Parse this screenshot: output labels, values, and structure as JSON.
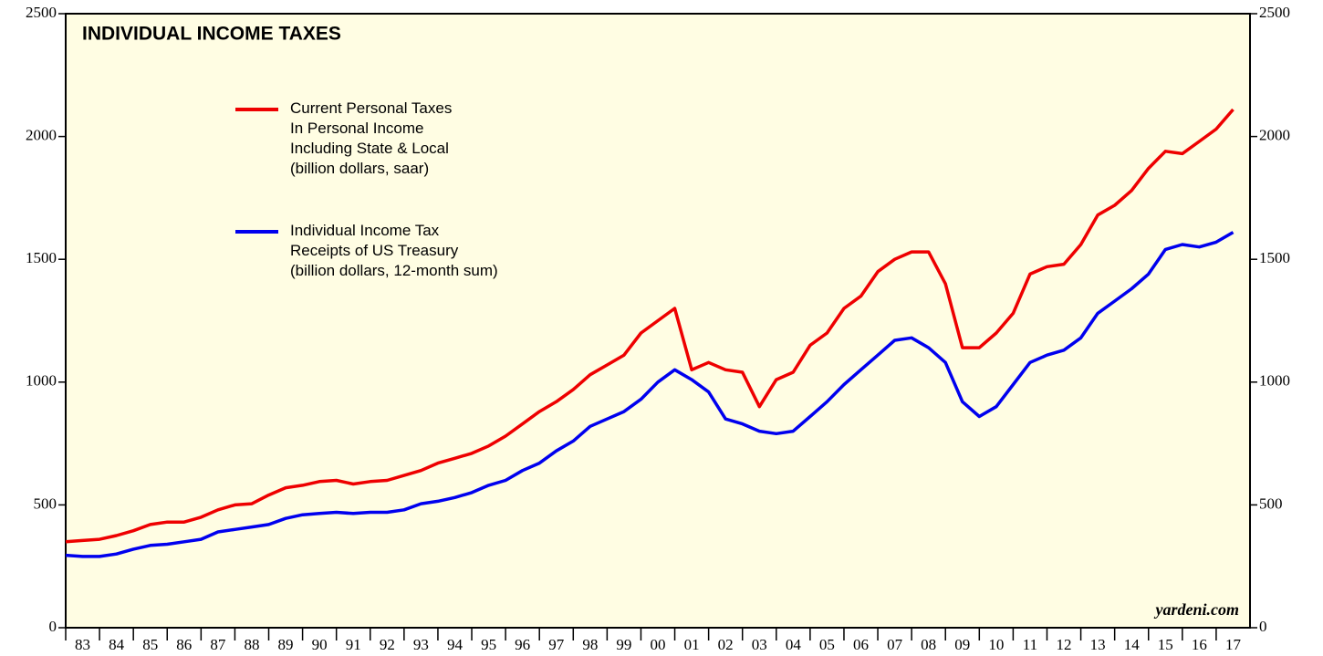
{
  "chart_data": {
    "type": "line",
    "title": "INDIVIDUAL INCOME TAXES",
    "source": "yardeni.com",
    "x": [
      1983,
      1983.5,
      1984,
      1984.5,
      1985,
      1985.5,
      1986,
      1986.5,
      1987,
      1987.5,
      1988,
      1988.5,
      1989,
      1989.5,
      1990,
      1990.5,
      1991,
      1991.5,
      1992,
      1992.5,
      1993,
      1993.5,
      1994,
      1994.5,
      1995,
      1995.5,
      1996,
      1996.5,
      1997,
      1997.5,
      1998,
      1998.5,
      1999,
      1999.5,
      2000,
      2000.5,
      2001,
      2001.5,
      2002,
      2002.5,
      2003,
      2003.5,
      2004,
      2004.5,
      2005,
      2005.5,
      2006,
      2006.5,
      2007,
      2007.5,
      2008,
      2008.5,
      2009,
      2009.5,
      2010,
      2010.5,
      2011,
      2011.5,
      2012,
      2012.5,
      2013,
      2013.5,
      2014,
      2014.5,
      2015,
      2015.5,
      2016,
      2016.5,
      2017,
      2017.5
    ],
    "series": [
      {
        "name": "Current Personal Taxes\nIn Personal Income\nIncluding State & Local\n(billion dollars, saar)",
        "color": "#ee0000",
        "values": [
          350,
          355,
          360,
          375,
          395,
          420,
          430,
          430,
          450,
          480,
          500,
          505,
          540,
          570,
          580,
          595,
          600,
          585,
          595,
          600,
          620,
          640,
          670,
          690,
          710,
          740,
          780,
          830,
          880,
          920,
          970,
          1030,
          1070,
          1110,
          1200,
          1250,
          1300,
          1050,
          1080,
          1050,
          1040,
          900,
          1010,
          1040,
          1150,
          1200,
          1300,
          1350,
          1450,
          1500,
          1530,
          1530,
          1400,
          1140,
          1140,
          1200,
          1280,
          1440,
          1470,
          1480,
          1560,
          1680,
          1720,
          1780,
          1870,
          1940,
          1930,
          1980,
          2030,
          2110
        ]
      },
      {
        "name": "Individual Income Tax\nReceipts of US Treasury\n(billion dollars, 12-month sum)",
        "color": "#0000ee",
        "values": [
          295,
          290,
          290,
          300,
          320,
          335,
          340,
          350,
          360,
          390,
          400,
          410,
          420,
          445,
          460,
          465,
          470,
          465,
          470,
          470,
          480,
          505,
          515,
          530,
          550,
          580,
          600,
          640,
          670,
          720,
          760,
          820,
          850,
          880,
          930,
          1000,
          1050,
          1010,
          960,
          850,
          830,
          800,
          790,
          800,
          860,
          920,
          990,
          1050,
          1110,
          1170,
          1180,
          1140,
          1080,
          920,
          860,
          900,
          990,
          1080,
          1110,
          1130,
          1180,
          1280,
          1330,
          1380,
          1440,
          1540,
          1560,
          1550,
          1570,
          1610
        ]
      }
    ],
    "xlim": [
      1983,
      2018
    ],
    "xticks": [
      {
        "value": 1983.5,
        "label": "83"
      },
      {
        "value": 1984.5,
        "label": "84"
      },
      {
        "value": 1985.5,
        "label": "85"
      },
      {
        "value": 1986.5,
        "label": "86"
      },
      {
        "value": 1987.5,
        "label": "87"
      },
      {
        "value": 1988.5,
        "label": "88"
      },
      {
        "value": 1989.5,
        "label": "89"
      },
      {
        "value": 1990.5,
        "label": "90"
      },
      {
        "value": 1991.5,
        "label": "91"
      },
      {
        "value": 1992.5,
        "label": "92"
      },
      {
        "value": 1993.5,
        "label": "93"
      },
      {
        "value": 1994.5,
        "label": "94"
      },
      {
        "value": 1995.5,
        "label": "95"
      },
      {
        "value": 1996.5,
        "label": "96"
      },
      {
        "value": 1997.5,
        "label": "97"
      },
      {
        "value": 1998.5,
        "label": "98"
      },
      {
        "value": 1999.5,
        "label": "99"
      },
      {
        "value": 2000.5,
        "label": "00"
      },
      {
        "value": 2001.5,
        "label": "01"
      },
      {
        "value": 2002.5,
        "label": "02"
      },
      {
        "value": 2003.5,
        "label": "03"
      },
      {
        "value": 2004.5,
        "label": "04"
      },
      {
        "value": 2005.5,
        "label": "05"
      },
      {
        "value": 2006.5,
        "label": "06"
      },
      {
        "value": 2007.5,
        "label": "07"
      },
      {
        "value": 2008.5,
        "label": "08"
      },
      {
        "value": 2009.5,
        "label": "09"
      },
      {
        "value": 2010.5,
        "label": "10"
      },
      {
        "value": 2011.5,
        "label": "11"
      },
      {
        "value": 2012.5,
        "label": "12"
      },
      {
        "value": 2013.5,
        "label": "13"
      },
      {
        "value": 2014.5,
        "label": "14"
      },
      {
        "value": 2015.5,
        "label": "15"
      },
      {
        "value": 2016.5,
        "label": "16"
      },
      {
        "value": 2017.5,
        "label": "17"
      }
    ],
    "ylim": [
      0,
      2500
    ],
    "yticks": [
      0,
      500,
      1000,
      1500,
      2000,
      2500
    ],
    "y2lim": [
      0,
      2500
    ],
    "y2ticks": [
      0,
      500,
      1000,
      1500,
      2000,
      2500
    ]
  }
}
